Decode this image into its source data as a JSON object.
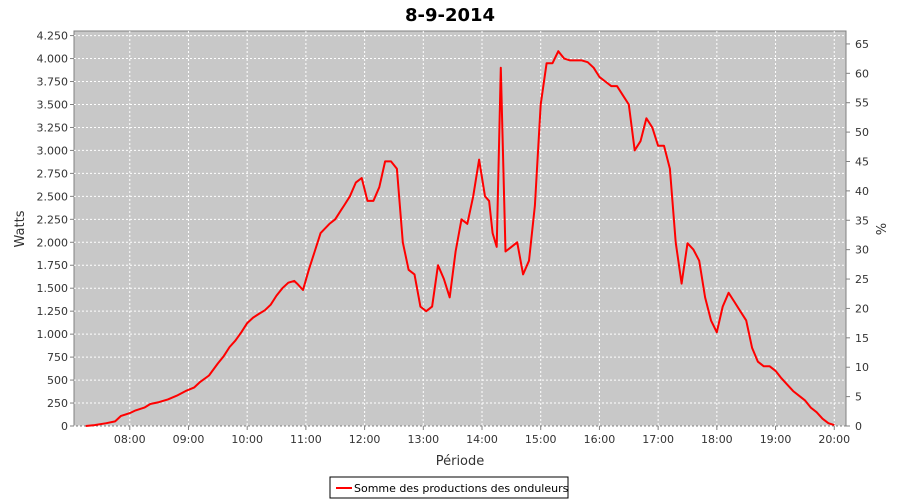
{
  "chart_data": {
    "type": "line",
    "title": "8-9-2014",
    "xlabel": "Période",
    "ylabel": "Watts",
    "y2label": "%",
    "xlim": [
      7.05,
      20.2
    ],
    "ylim": [
      0,
      4300
    ],
    "y2lim": [
      0,
      67.2
    ],
    "x_ticks": [
      8,
      9,
      10,
      11,
      12,
      13,
      14,
      15,
      16,
      17,
      18,
      19,
      20
    ],
    "x_tick_labels": [
      "08:00",
      "09:00",
      "10:00",
      "11:00",
      "12:00",
      "13:00",
      "14:00",
      "15:00",
      "16:00",
      "17:00",
      "18:00",
      "19:00",
      "20:00"
    ],
    "y_ticks": [
      0,
      250,
      500,
      750,
      1000,
      1250,
      1500,
      1750,
      2000,
      2250,
      2500,
      2750,
      3000,
      3250,
      3500,
      3750,
      4000,
      4250
    ],
    "y_tick_labels": [
      "0",
      "250",
      "500",
      "750",
      "1.000",
      "1.250",
      "1.500",
      "1.750",
      "2.000",
      "2.250",
      "2.500",
      "2.750",
      "3.000",
      "3.250",
      "3.500",
      "3.750",
      "4.000",
      "4.250"
    ],
    "y2_ticks": [
      0,
      5,
      10,
      15,
      20,
      25,
      30,
      35,
      40,
      45,
      50,
      55,
      60,
      65
    ],
    "y2_tick_labels": [
      "0",
      "5",
      "10",
      "15",
      "20",
      "25",
      "30",
      "35",
      "40",
      "45",
      "50",
      "55",
      "60",
      "65"
    ],
    "grid": true,
    "legend_position": "bottom-center",
    "background": "#c8c8c8",
    "grid_color": "#ffffff",
    "series": [
      {
        "name": "Somme des productions des onduleurs",
        "color": "#ff0000",
        "x": [
          7.25,
          7.4,
          7.6,
          7.75,
          7.85,
          8.0,
          8.1,
          8.25,
          8.35,
          8.5,
          8.65,
          8.8,
          8.95,
          9.1,
          9.2,
          9.35,
          9.5,
          9.6,
          9.7,
          9.8,
          9.9,
          10.0,
          10.1,
          10.2,
          10.3,
          10.4,
          10.5,
          10.6,
          10.7,
          10.8,
          10.85,
          10.95,
          11.05,
          11.15,
          11.25,
          11.4,
          11.5,
          11.6,
          11.65,
          11.75,
          11.85,
          11.95,
          12.05,
          12.15,
          12.25,
          12.35,
          12.45,
          12.55,
          12.65,
          12.75,
          12.85,
          12.95,
          13.05,
          13.15,
          13.25,
          13.35,
          13.45,
          13.55,
          13.65,
          13.75,
          13.85,
          13.95,
          14.05,
          14.12,
          14.18,
          14.25,
          14.32,
          14.4,
          14.5,
          14.6,
          14.7,
          14.8,
          14.9,
          15.0,
          15.1,
          15.2,
          15.3,
          15.4,
          15.5,
          15.6,
          15.7,
          15.8,
          15.9,
          16.0,
          16.1,
          16.2,
          16.3,
          16.4,
          16.5,
          16.6,
          16.7,
          16.8,
          16.9,
          17.0,
          17.1,
          17.2,
          17.3,
          17.4,
          17.5,
          17.6,
          17.7,
          17.8,
          17.9,
          18.0,
          18.1,
          18.2,
          18.3,
          18.4,
          18.5,
          18.6,
          18.7,
          18.8,
          18.9,
          19.0,
          19.1,
          19.2,
          19.3,
          19.4,
          19.5,
          19.6,
          19.7,
          19.8,
          19.9,
          20.0
        ],
        "y": [
          0,
          10,
          30,
          50,
          110,
          140,
          170,
          200,
          240,
          260,
          290,
          330,
          380,
          420,
          480,
          550,
          680,
          760,
          860,
          930,
          1020,
          1120,
          1180,
          1220,
          1260,
          1320,
          1420,
          1500,
          1560,
          1580,
          1550,
          1480,
          1700,
          1900,
          2100,
          2200,
          2250,
          2350,
          2400,
          2500,
          2650,
          2700,
          2450,
          2450,
          2600,
          2880,
          2880,
          2800,
          2000,
          1700,
          1650,
          1300,
          1250,
          1300,
          1750,
          1600,
          1400,
          1900,
          2250,
          2200,
          2500,
          2900,
          2500,
          2450,
          2100,
          1950,
          3900,
          1900,
          1950,
          2000,
          1650,
          1800,
          2400,
          3500,
          3950,
          3950,
          4080,
          4000,
          3980,
          3980,
          3980,
          3960,
          3900,
          3800,
          3750,
          3700,
          3700,
          3600,
          3500,
          3000,
          3100,
          3350,
          3250,
          3050,
          3050,
          2800,
          2000,
          1550,
          1990,
          1920,
          1800,
          1400,
          1150,
          1020,
          1300,
          1450,
          1350,
          1250,
          1150,
          850,
          700,
          650,
          650,
          600,
          520,
          450,
          380,
          330,
          280,
          200,
          150,
          80,
          30,
          10
        ]
      }
    ]
  }
}
